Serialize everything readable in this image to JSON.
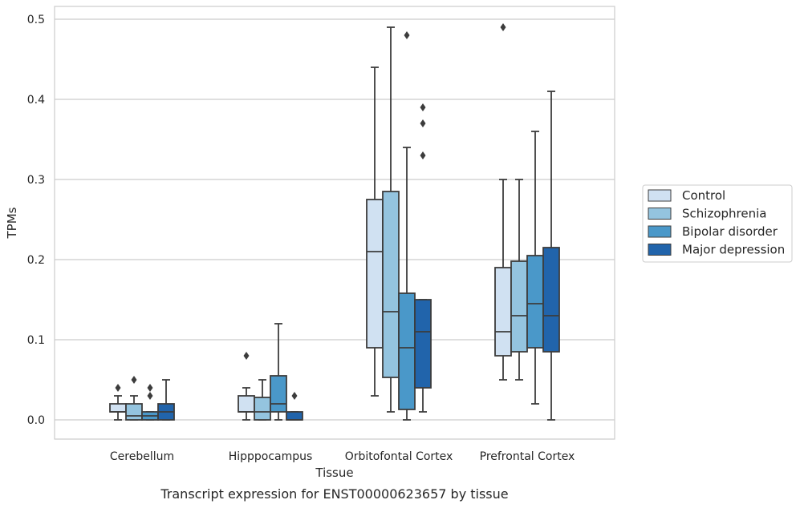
{
  "chart_data": {
    "type": "box",
    "xlabel": "Tissue",
    "ylabel": "TPMs",
    "caption": "Transcript expression for ENST00000623657 by tissue",
    "ylim": [
      -0.023,
      0.515
    ],
    "yticks": [
      0.0,
      0.1,
      0.2,
      0.3,
      0.4,
      0.5
    ],
    "ytick_labels": [
      "0.0",
      "0.1",
      "0.2",
      "0.3",
      "0.4",
      "0.5"
    ],
    "grid": "horizontal",
    "legend_position": "right",
    "categories": [
      "Cerebellum",
      "Hipppocampus",
      "Orbitofontal Cortex",
      "Prefrontal Cortex"
    ],
    "series": [
      {
        "name": "Control",
        "color": "#d0e1f2",
        "boxes": [
          {
            "whislo": 0.0,
            "q1": 0.01,
            "med": 0.01,
            "q3": 0.02,
            "whishi": 0.03,
            "fliers": [
              0.04
            ]
          },
          {
            "whislo": 0.0,
            "q1": 0.01,
            "med": 0.01,
            "q3": 0.03,
            "whishi": 0.04,
            "fliers": [
              0.08
            ]
          },
          {
            "whislo": 0.03,
            "q1": 0.09,
            "med": 0.21,
            "q3": 0.275,
            "whishi": 0.44,
            "fliers": []
          },
          {
            "whislo": 0.05,
            "q1": 0.08,
            "med": 0.11,
            "q3": 0.19,
            "whishi": 0.3,
            "fliers": [
              0.49
            ]
          }
        ]
      },
      {
        "name": "Schizophrenia",
        "color": "#94c4df",
        "boxes": [
          {
            "whislo": 0.0,
            "q1": 0.0,
            "med": 0.005,
            "q3": 0.02,
            "whishi": 0.03,
            "fliers": [
              0.05
            ]
          },
          {
            "whislo": 0.0,
            "q1": 0.0,
            "med": 0.01,
            "q3": 0.028,
            "whishi": 0.05,
            "fliers": []
          },
          {
            "whislo": 0.01,
            "q1": 0.053,
            "med": 0.135,
            "q3": 0.285,
            "whishi": 0.49,
            "fliers": []
          },
          {
            "whislo": 0.05,
            "q1": 0.085,
            "med": 0.13,
            "q3": 0.198,
            "whishi": 0.3,
            "fliers": []
          }
        ]
      },
      {
        "name": "Bipolar disorder",
        "color": "#4a98c9",
        "boxes": [
          {
            "whislo": 0.0,
            "q1": 0.0,
            "med": 0.005,
            "q3": 0.01,
            "whishi": 0.01,
            "fliers": [
              0.03,
              0.04
            ]
          },
          {
            "whislo": 0.0,
            "q1": 0.01,
            "med": 0.02,
            "q3": 0.055,
            "whishi": 0.12,
            "fliers": []
          },
          {
            "whislo": 0.0,
            "q1": 0.013,
            "med": 0.09,
            "q3": 0.158,
            "whishi": 0.34,
            "fliers": [
              0.48
            ]
          },
          {
            "whislo": 0.02,
            "q1": 0.09,
            "med": 0.145,
            "q3": 0.205,
            "whishi": 0.36,
            "fliers": []
          }
        ]
      },
      {
        "name": "Major depression",
        "color": "#2164ab",
        "boxes": [
          {
            "whislo": 0.0,
            "q1": 0.0,
            "med": 0.01,
            "q3": 0.02,
            "whishi": 0.05,
            "fliers": []
          },
          {
            "whislo": 0.0,
            "q1": 0.0,
            "med": 0.0,
            "q3": 0.01,
            "whishi": 0.01,
            "fliers": [
              0.03
            ]
          },
          {
            "whislo": 0.01,
            "q1": 0.04,
            "med": 0.11,
            "q3": 0.15,
            "whishi": 0.15,
            "fliers": [
              0.33,
              0.37,
              0.39
            ]
          },
          {
            "whislo": 0.0,
            "q1": 0.085,
            "med": 0.13,
            "q3": 0.215,
            "whishi": 0.41,
            "fliers": []
          }
        ]
      }
    ]
  }
}
